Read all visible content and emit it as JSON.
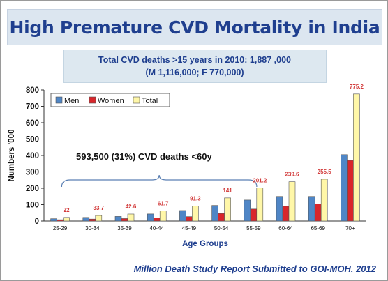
{
  "slide": {
    "title": "High Premature CVD Mortality in India",
    "subtitle_line1": "Total CVD deaths >15 years in 2010: 1,887 ,000",
    "subtitle_line2": "(M 1,116,000; F 770,000)",
    "footer": "Million Death Study Report Submitted to GOI-MOH. 2012"
  },
  "chart_data": {
    "type": "bar",
    "xlabel": "Age Groups",
    "ylabel": "Numbers  '000",
    "ylim": [
      0,
      800
    ],
    "yticks": [
      0,
      100,
      200,
      300,
      400,
      500,
      600,
      700,
      800
    ],
    "legend_position": "top-left",
    "categories": [
      "25-29",
      "30-34",
      "35-39",
      "40-44",
      "45-49",
      "50-54",
      "55-59",
      "60-64",
      "65-69",
      "70+"
    ],
    "series": [
      {
        "name": "Men",
        "color": "#4f86c6",
        "values": [
          14,
          22,
          28,
          43,
          64,
          95,
          128,
          150,
          150,
          405
        ]
      },
      {
        "name": "Women",
        "color": "#d9262b",
        "values": [
          8,
          12,
          15,
          19,
          27,
          46,
          73,
          90,
          105,
          370
        ]
      },
      {
        "name": "Total",
        "color": "#fff7a8",
        "values": [
          22,
          33.7,
          42.6,
          61.7,
          91.3,
          141,
          201.2,
          239.6,
          255.5,
          775.2
        ]
      }
    ],
    "data_labels": [
      "22",
      "33.7",
      "42.6",
      "61.7",
      "91.3",
      "141",
      "201.2",
      "239.6",
      "255.5",
      "775.2"
    ],
    "annotation": "593,500 (31%) CVD deaths <60y"
  }
}
